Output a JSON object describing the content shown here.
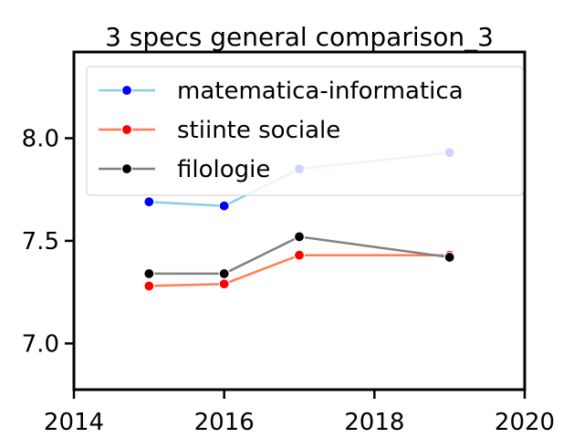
{
  "chart_data": {
    "type": "line",
    "title": "3 specs general comparison_3",
    "xlabel": "",
    "ylabel": "",
    "xlim": [
      2014,
      2020
    ],
    "ylim": [
      6.775,
      8.42
    ],
    "xticks": [
      2014,
      2016,
      2018,
      2020
    ],
    "yticks": [
      7.0,
      7.5,
      8.0
    ],
    "xtick_labels": [
      "2014",
      "2016",
      "2018",
      "2020"
    ],
    "ytick_labels": [
      "7.0",
      "7.5",
      "8.0"
    ],
    "grid": false,
    "legend_position": "top-right",
    "series": [
      {
        "name": "matematica-informatica",
        "line_color": "#87CEEB",
        "marker_color": "#0000FF",
        "x": [
          2015,
          2016,
          2017,
          2019
        ],
        "y": [
          7.69,
          7.67,
          7.85,
          7.93
        ]
      },
      {
        "name": "stiinte sociale",
        "line_color": "#FF7F50",
        "marker_color": "#FF0000",
        "x": [
          2015,
          2016,
          2017,
          2019
        ],
        "y": [
          7.28,
          7.29,
          7.43,
          7.43
        ]
      },
      {
        "name": "filologie",
        "line_color": "#808080",
        "marker_color": "#000000",
        "x": [
          2015,
          2016,
          2017,
          2019
        ],
        "y": [
          7.34,
          7.34,
          7.52,
          7.42
        ]
      }
    ]
  }
}
